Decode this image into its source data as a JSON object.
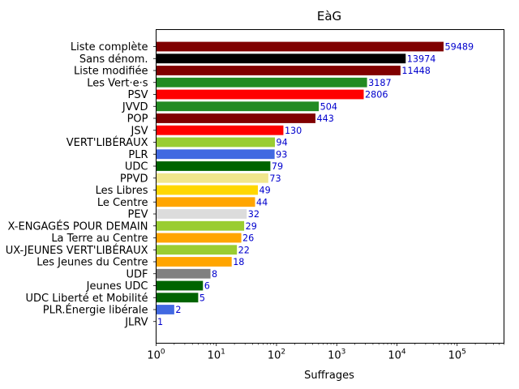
{
  "chart_data": {
    "type": "bar",
    "orientation": "horizontal",
    "title": "EàG",
    "xlabel": "Suffrages",
    "ylabel": "",
    "xscale": "log",
    "xlim": [
      1,
      600000
    ],
    "x_ticks": [
      {
        "value": 1,
        "base": "10",
        "exp": "0"
      },
      {
        "value": 10,
        "base": "10",
        "exp": "1"
      },
      {
        "value": 100,
        "base": "10",
        "exp": "2"
      },
      {
        "value": 1000,
        "base": "10",
        "exp": "3"
      },
      {
        "value": 10000,
        "base": "10",
        "exp": "4"
      },
      {
        "value": 100000,
        "base": "10",
        "exp": "5"
      }
    ],
    "grid": false,
    "bars": [
      {
        "category": "Liste complète",
        "value": 59489,
        "label": "59489",
        "color": "#800000"
      },
      {
        "category": "Sans dénom.",
        "value": 13974,
        "label": "13974",
        "color": "#000000"
      },
      {
        "category": "Liste modifiée",
        "value": 11448,
        "label": "11448",
        "color": "#800000"
      },
      {
        "category": "Les Vert·e·s",
        "value": 3187,
        "label": "3187",
        "color": "#228b22"
      },
      {
        "category": "PSV",
        "value": 2806,
        "label": "2806",
        "color": "#ff0000"
      },
      {
        "category": "JVVD",
        "value": 504,
        "label": "504",
        "color": "#228b22"
      },
      {
        "category": "POP",
        "value": 443,
        "label": "443",
        "color": "#800000"
      },
      {
        "category": "JSV",
        "value": 130,
        "label": "130",
        "color": "#ff0000"
      },
      {
        "category": "VERT'LIBÉRAUX",
        "value": 94,
        "label": "94",
        "color": "#9acd32"
      },
      {
        "category": "PLR",
        "value": 93,
        "label": "93",
        "color": "#4169e1"
      },
      {
        "category": "UDC",
        "value": 79,
        "label": "79",
        "color": "#006400"
      },
      {
        "category": "PPVD",
        "value": 73,
        "label": "73",
        "color": "#f0e68c"
      },
      {
        "category": "Les Libres",
        "value": 49,
        "label": "49",
        "color": "#ffd700"
      },
      {
        "category": "Le Centre",
        "value": 44,
        "label": "44",
        "color": "#ffa500"
      },
      {
        "category": "PEV",
        "value": 32,
        "label": "32",
        "color": "#dcdcdc"
      },
      {
        "category": "X-ENGAGÉS POUR DEMAIN",
        "value": 29,
        "label": "29",
        "color": "#9acd32"
      },
      {
        "category": "La Terre au Centre",
        "value": 26,
        "label": "26",
        "color": "#ffa500"
      },
      {
        "category": "UX-JEUNES VERT'LIBÉRAUX",
        "value": 22,
        "label": "22",
        "color": "#9acd32"
      },
      {
        "category": "Les Jeunes du Centre",
        "value": 18,
        "label": "18",
        "color": "#ffa500"
      },
      {
        "category": "UDF",
        "value": 8,
        "label": "8",
        "color": "#808080"
      },
      {
        "category": "Jeunes UDC",
        "value": 6,
        "label": "6",
        "color": "#006400"
      },
      {
        "category": "UDC Liberté et Mobilité",
        "value": 5,
        "label": "5",
        "color": "#006400"
      },
      {
        "category": "PLR.Énergie libérale",
        "value": 2,
        "label": "2",
        "color": "#4169e1"
      },
      {
        "category": "JLRV",
        "value": 1,
        "label": "1",
        "color": "#4169e1"
      }
    ],
    "value_label_color": "#0000cd"
  }
}
